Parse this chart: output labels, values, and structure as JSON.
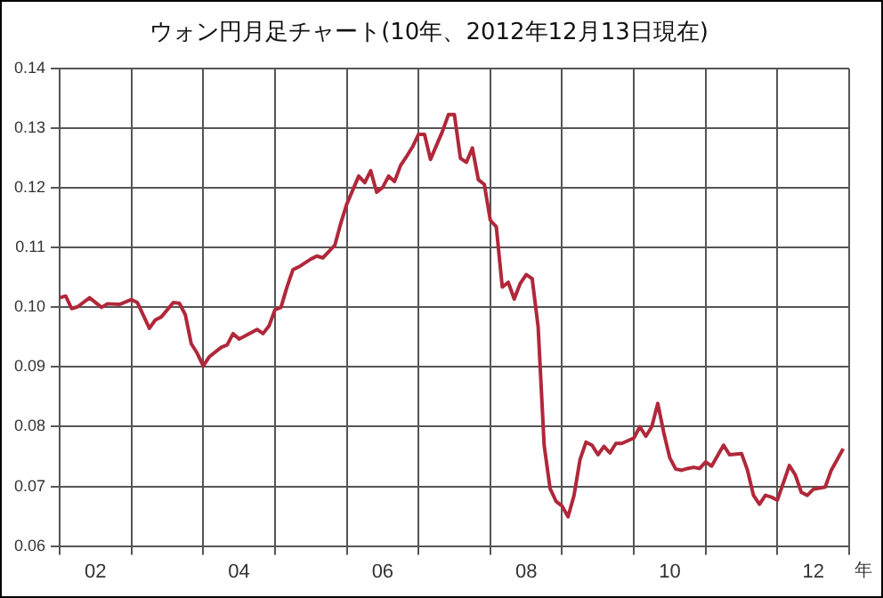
{
  "chart_data": {
    "type": "line",
    "title": "ウォン円月足チャート(10年、2012年12月13日現在)",
    "xlabel": "年",
    "x": [
      "2002-01",
      "2002-02",
      "2002-03",
      "2002-04",
      "2002-06",
      "2002-08",
      "2002-09",
      "2002-11",
      "2003-01",
      "2003-02",
      "2003-04",
      "2003-05",
      "2003-06",
      "2003-08",
      "2003-09",
      "2003-10",
      "2003-11",
      "2003-12",
      "2004-01",
      "2004-02",
      "2004-04",
      "2004-05",
      "2004-06",
      "2004-07",
      "2004-08",
      "2004-10",
      "2004-11",
      "2004-12",
      "2005-01",
      "2005-02",
      "2005-03",
      "2005-04",
      "2005-05",
      "2005-07",
      "2005-08",
      "2005-09",
      "2005-11",
      "2005-12",
      "2006-01",
      "2006-03",
      "2006-04",
      "2006-05",
      "2006-06",
      "2006-07",
      "2006-08",
      "2006-09",
      "2006-10",
      "2006-11",
      "2006-12",
      "2007-01",
      "2007-02",
      "2007-03",
      "2007-05",
      "2007-06",
      "2007-07",
      "2007-08",
      "2007-09",
      "2007-10",
      "2007-11",
      "2007-12",
      "2008-01",
      "2008-02",
      "2008-03",
      "2008-04",
      "2008-05",
      "2008-06",
      "2008-07",
      "2008-08",
      "2008-09",
      "2008-10",
      "2008-11",
      "2008-12",
      "2009-01",
      "2009-02",
      "2009-03",
      "2009-04",
      "2009-05",
      "2009-06",
      "2009-07",
      "2009-08",
      "2009-09",
      "2009-10",
      "2009-11",
      "2010-01",
      "2010-02",
      "2010-03",
      "2010-04",
      "2010-05",
      "2010-06",
      "2010-07",
      "2010-08",
      "2010-09",
      "2010-10",
      "2010-11",
      "2010-12",
      "2011-01",
      "2011-02",
      "2011-04",
      "2011-05",
      "2011-07",
      "2011-08",
      "2011-09",
      "2011-10",
      "2011-11",
      "2011-12",
      "2012-01",
      "2012-03",
      "2012-04",
      "2012-05",
      "2012-06",
      "2012-07",
      "2012-09",
      "2012-10",
      "2012-12"
    ],
    "series": [
      {
        "color": "#b0283a",
        "values": [
          0.1016,
          0.1019,
          0.0998,
          0.1001,
          0.1016,
          0.1,
          0.1006,
          0.1005,
          0.1013,
          0.1008,
          0.0965,
          0.0979,
          0.0984,
          0.1008,
          0.1007,
          0.0988,
          0.0939,
          0.0923,
          0.0902,
          0.0917,
          0.0933,
          0.0937,
          0.0956,
          0.0947,
          0.0952,
          0.0963,
          0.0956,
          0.0969,
          0.0996,
          0.1,
          0.1034,
          0.1063,
          0.1068,
          0.1081,
          0.1086,
          0.1083,
          0.1104,
          0.1141,
          0.1173,
          0.122,
          0.1209,
          0.1229,
          0.1193,
          0.1201,
          0.122,
          0.1211,
          0.1238,
          0.1253,
          0.1269,
          0.129,
          0.129,
          0.1248,
          0.1295,
          0.1323,
          0.1323,
          0.125,
          0.1243,
          0.1267,
          0.1214,
          0.1206,
          0.1146,
          0.1135,
          0.1034,
          0.1042,
          0.1014,
          0.104,
          0.1055,
          0.1048,
          0.0967,
          0.0769,
          0.0696,
          0.0675,
          0.0667,
          0.0649,
          0.0685,
          0.0745,
          0.0774,
          0.0769,
          0.0753,
          0.0767,
          0.0756,
          0.0772,
          0.0772,
          0.0781,
          0.08,
          0.0784,
          0.08,
          0.0839,
          0.079,
          0.0748,
          0.0729,
          0.0727,
          0.073,
          0.0732,
          0.073,
          0.0741,
          0.0734,
          0.0769,
          0.0753,
          0.0755,
          0.0727,
          0.0685,
          0.067,
          0.0685,
          0.0682,
          0.0677,
          0.0735,
          0.0719,
          0.069,
          0.0685,
          0.0695,
          0.0699,
          0.0727,
          0.0763
        ]
      }
    ],
    "xlim": [
      "2002-01",
      "2013-01"
    ],
    "xticks": [
      {
        "value": "2002-01",
        "label": null
      },
      {
        "value": "2002-07",
        "label": "02"
      },
      {
        "value": "2003-01",
        "label": null
      },
      {
        "value": "2004-01",
        "label": null
      },
      {
        "value": "2004-07",
        "label": "04"
      },
      {
        "value": "2005-01",
        "label": null
      },
      {
        "value": "2006-01",
        "label": null
      },
      {
        "value": "2006-07",
        "label": "06"
      },
      {
        "value": "2007-01",
        "label": null
      },
      {
        "value": "2008-01",
        "label": null
      },
      {
        "value": "2008-07",
        "label": "08"
      },
      {
        "value": "2009-01",
        "label": null
      },
      {
        "value": "2010-01",
        "label": null
      },
      {
        "value": "2010-07",
        "label": "10"
      },
      {
        "value": "2011-01",
        "label": null
      },
      {
        "value": "2012-01",
        "label": null
      },
      {
        "value": "2012-07",
        "label": "12"
      },
      {
        "value": "2013-01",
        "label": null
      }
    ],
    "ylim": [
      0.06,
      0.14
    ],
    "yticks": [
      0.06,
      0.07,
      0.08,
      0.09,
      {
        "value": 0.1,
        "label": "0.10"
      },
      0.11,
      0.12,
      0.13,
      0.14
    ],
    "grid": true,
    "legend": false,
    "marker": "none",
    "line_style": "solid"
  }
}
